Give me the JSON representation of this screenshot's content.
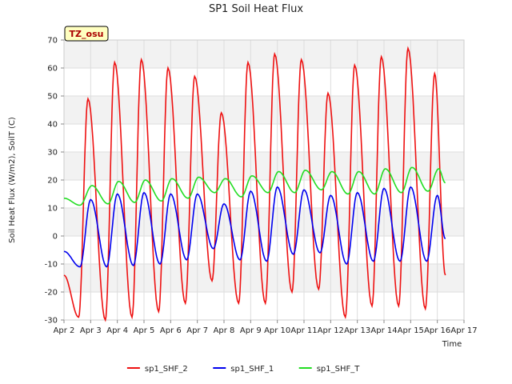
{
  "chart_data": {
    "type": "line",
    "title": "SP1 Soil Heat Flux",
    "xlabel": "Time",
    "ylabel": "Soil Heat Flux (W/m2), SoilT (C)",
    "x_ticks": [
      "Apr 2",
      "Apr 3",
      "Apr 4",
      "Apr 5",
      "Apr 6",
      "Apr 7",
      "Apr 8",
      "Apr 9",
      "Apr 10",
      "Apr 11",
      "Apr 12",
      "Apr 13",
      "Apr 14",
      "Apr 15",
      "Apr 16",
      "Apr 17"
    ],
    "xlim": [
      2,
      17
    ],
    "ylim": [
      -30,
      70
    ],
    "y_ticks": [
      -30,
      -20,
      -10,
      0,
      10,
      20,
      30,
      40,
      50,
      60,
      70
    ],
    "annotation": "TZ_osu",
    "legend_position": "bottom-center",
    "grid": "alternating horizontal bands",
    "series": [
      {
        "name": "sp1_SHF_2",
        "color": "#ee1111",
        "daily_peaks": [
          {
            "x": 2.9,
            "y": 49
          },
          {
            "x": 3.9,
            "y": 62
          },
          {
            "x": 4.9,
            "y": 63
          },
          {
            "x": 5.9,
            "y": 60
          },
          {
            "x": 6.9,
            "y": 57
          },
          {
            "x": 7.9,
            "y": 44
          },
          {
            "x": 8.9,
            "y": 62
          },
          {
            "x": 9.9,
            "y": 65
          },
          {
            "x": 10.9,
            "y": 63
          },
          {
            "x": 11.9,
            "y": 51
          },
          {
            "x": 12.9,
            "y": 61
          },
          {
            "x": 13.9,
            "y": 64
          },
          {
            "x": 14.9,
            "y": 67
          },
          {
            "x": 15.9,
            "y": 58
          }
        ],
        "daily_troughs": [
          {
            "x": 2.0,
            "y": -14
          },
          {
            "x": 2.55,
            "y": -29
          },
          {
            "x": 3.55,
            "y": -30
          },
          {
            "x": 4.55,
            "y": -29
          },
          {
            "x": 5.55,
            "y": -27
          },
          {
            "x": 6.55,
            "y": -24
          },
          {
            "x": 7.55,
            "y": -16
          },
          {
            "x": 8.55,
            "y": -24
          },
          {
            "x": 9.55,
            "y": -24
          },
          {
            "x": 10.55,
            "y": -20
          },
          {
            "x": 11.55,
            "y": -19
          },
          {
            "x": 12.55,
            "y": -29
          },
          {
            "x": 13.55,
            "y": -25
          },
          {
            "x": 14.55,
            "y": -25
          },
          {
            "x": 15.55,
            "y": -26
          },
          {
            "x": 16.3,
            "y": -14
          }
        ]
      },
      {
        "name": "sp1_SHF_1",
        "color": "#0000ee",
        "daily_peaks": [
          {
            "x": 3.0,
            "y": 13
          },
          {
            "x": 4.0,
            "y": 15
          },
          {
            "x": 5.0,
            "y": 15.5
          },
          {
            "x": 6.0,
            "y": 15
          },
          {
            "x": 7.0,
            "y": 15
          },
          {
            "x": 8.0,
            "y": 11.5
          },
          {
            "x": 9.0,
            "y": 16
          },
          {
            "x": 10.0,
            "y": 17.5
          },
          {
            "x": 11.0,
            "y": 16.5
          },
          {
            "x": 12.0,
            "y": 14.5
          },
          {
            "x": 13.0,
            "y": 15.5
          },
          {
            "x": 14.0,
            "y": 17
          },
          {
            "x": 15.0,
            "y": 17.5
          },
          {
            "x": 16.0,
            "y": 14.5
          }
        ],
        "daily_troughs": [
          {
            "x": 2.0,
            "y": -5.5
          },
          {
            "x": 2.6,
            "y": -11
          },
          {
            "x": 3.6,
            "y": -11
          },
          {
            "x": 4.6,
            "y": -10.5
          },
          {
            "x": 5.6,
            "y": -10
          },
          {
            "x": 6.6,
            "y": -8.5
          },
          {
            "x": 7.6,
            "y": -4.5
          },
          {
            "x": 8.6,
            "y": -8.5
          },
          {
            "x": 9.6,
            "y": -9
          },
          {
            "x": 10.6,
            "y": -6.5
          },
          {
            "x": 11.6,
            "y": -6
          },
          {
            "x": 12.6,
            "y": -10
          },
          {
            "x": 13.6,
            "y": -9
          },
          {
            "x": 14.6,
            "y": -9
          },
          {
            "x": 15.6,
            "y": -9
          },
          {
            "x": 16.3,
            "y": -1
          }
        ]
      },
      {
        "name": "sp1_SHF_T",
        "color": "#22dd22",
        "daily_peaks": [
          {
            "x": 3.05,
            "y": 18
          },
          {
            "x": 4.05,
            "y": 19.5
          },
          {
            "x": 5.05,
            "y": 20
          },
          {
            "x": 6.05,
            "y": 20.5
          },
          {
            "x": 7.05,
            "y": 21
          },
          {
            "x": 8.05,
            "y": 20.5
          },
          {
            "x": 9.05,
            "y": 21.5
          },
          {
            "x": 10.05,
            "y": 23
          },
          {
            "x": 11.05,
            "y": 23.5
          },
          {
            "x": 12.05,
            "y": 23
          },
          {
            "x": 13.05,
            "y": 23
          },
          {
            "x": 14.05,
            "y": 24
          },
          {
            "x": 15.05,
            "y": 24.5
          },
          {
            "x": 16.05,
            "y": 24
          }
        ],
        "daily_troughs": [
          {
            "x": 2.0,
            "y": 13.5
          },
          {
            "x": 2.6,
            "y": 11
          },
          {
            "x": 3.65,
            "y": 11.5
          },
          {
            "x": 4.65,
            "y": 12
          },
          {
            "x": 5.65,
            "y": 12.5
          },
          {
            "x": 6.65,
            "y": 13.5
          },
          {
            "x": 7.65,
            "y": 15.5
          },
          {
            "x": 8.65,
            "y": 14
          },
          {
            "x": 9.65,
            "y": 15.5
          },
          {
            "x": 10.65,
            "y": 15.5
          },
          {
            "x": 11.65,
            "y": 16.5
          },
          {
            "x": 12.65,
            "y": 15
          },
          {
            "x": 13.65,
            "y": 15
          },
          {
            "x": 14.65,
            "y": 15.5
          },
          {
            "x": 15.65,
            "y": 16
          },
          {
            "x": 16.3,
            "y": 19
          }
        ]
      }
    ]
  }
}
